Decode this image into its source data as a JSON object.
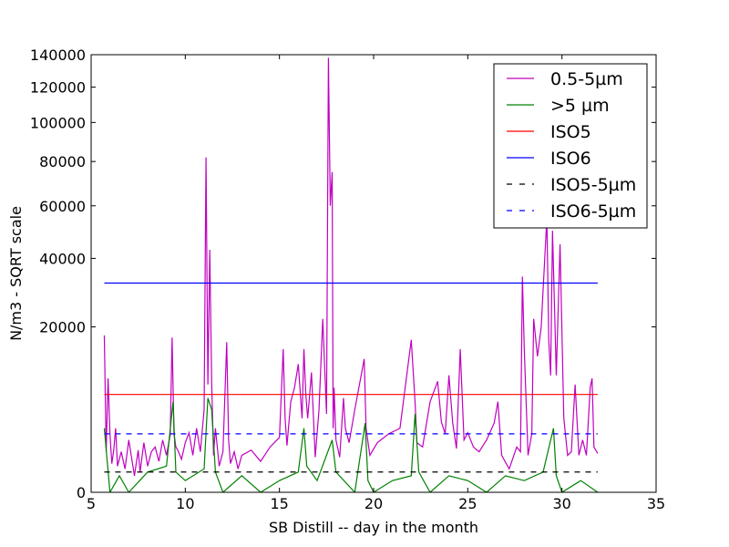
{
  "chart_data": {
    "type": "line",
    "title": "",
    "xlabel": "SB Distill -- day in the month",
    "ylabel": "N/m3 - SQRT scale",
    "xlim": [
      5,
      35
    ],
    "ylim": [
      0,
      140000
    ],
    "y_scale": "sqrt",
    "x_ticks": [
      5,
      10,
      15,
      20,
      25,
      30,
      35
    ],
    "y_ticks": [
      0,
      20000,
      40000,
      60000,
      80000,
      100000,
      120000,
      140000
    ],
    "x_tick_labels": [
      "5",
      "10",
      "15",
      "20",
      "25",
      "30",
      "35"
    ],
    "y_tick_labels": [
      "0",
      "20000",
      "40000",
      "60000",
      "80000",
      "100000",
      "120000",
      "140000"
    ],
    "grid": false,
    "legend_position": "top-right",
    "series": [
      {
        "name": "0.5-5µm",
        "color": "#bf00bf",
        "style": "solid",
        "x": [
          5.7,
          5.8,
          5.9,
          6.0,
          6.1,
          6.2,
          6.3,
          6.4,
          6.6,
          6.8,
          7.0,
          7.3,
          7.5,
          7.6,
          7.8,
          8.0,
          8.2,
          8.4,
          8.6,
          8.8,
          9.0,
          9.2,
          9.3,
          9.4,
          9.5,
          9.6,
          9.8,
          10.0,
          10.2,
          10.4,
          10.6,
          10.8,
          11.0,
          11.1,
          11.2,
          11.3,
          11.4,
          11.5,
          11.6,
          11.8,
          12.0,
          12.2,
          12.3,
          12.4,
          12.6,
          12.8,
          13.0,
          13.5,
          14.0,
          14.5,
          15.0,
          15.2,
          15.3,
          15.4,
          15.6,
          15.8,
          16.0,
          16.2,
          16.3,
          16.4,
          16.5,
          16.7,
          16.9,
          17.1,
          17.3,
          17.5,
          17.6,
          17.7,
          17.8,
          17.85,
          17.9,
          18.0,
          18.2,
          18.4,
          18.5,
          18.7,
          19.0,
          19.5,
          19.6,
          19.8,
          20.2,
          20.8,
          21.4,
          22.0,
          22.2,
          22.3,
          22.6,
          23.0,
          23.4,
          23.6,
          23.8,
          24.0,
          24.2,
          24.4,
          24.6,
          24.8,
          25.0,
          25.3,
          25.6,
          26.0,
          26.4,
          26.6,
          26.8,
          27.2,
          27.6,
          27.8,
          27.9,
          28.0,
          28.2,
          28.4,
          28.5,
          28.7,
          28.9,
          29.0,
          29.2,
          29.3,
          29.4,
          29.5,
          29.7,
          29.9,
          30.1,
          30.3,
          30.5,
          30.7,
          30.9,
          31.1,
          31.3,
          31.5,
          31.6,
          31.7,
          31.9
        ],
        "y": [
          18000,
          1200,
          9500,
          2500,
          600,
          1300,
          3000,
          500,
          1200,
          400,
          2000,
          200,
          1300,
          300,
          1800,
          500,
          1200,
          1500,
          700,
          2000,
          1000,
          2400,
          17500,
          2500,
          1500,
          1300,
          800,
          1800,
          2600,
          1000,
          3000,
          1200,
          5000,
          82000,
          8500,
          43000,
          9000,
          1000,
          3000,
          500,
          1200,
          16500,
          2000,
          600,
          1200,
          400,
          1000,
          1300,
          700,
          1500,
          2200,
          15000,
          4000,
          1600,
          6000,
          8000,
          12000,
          4000,
          15000,
          7000,
          4000,
          10500,
          900,
          5000,
          22000,
          4500,
          138000,
          60000,
          75000,
          3000,
          8000,
          2000,
          900,
          6500,
          3000,
          1800,
          5000,
          13000,
          3000,
          1000,
          1800,
          2500,
          3000,
          17000,
          6000,
          1800,
          1500,
          6000,
          9000,
          3600,
          2500,
          10000,
          3500,
          1400,
          15000,
          2000,
          2600,
          1500,
          1200,
          2000,
          3500,
          6000,
          1000,
          400,
          1500,
          1200,
          34000,
          15000,
          1000,
          2500,
          22000,
          13500,
          20000,
          30000,
          55000,
          17000,
          10000,
          50000,
          10000,
          45000,
          4000,
          1000,
          1200,
          8500,
          1000,
          2000,
          1000,
          8000,
          9500,
          1500,
          1100
        ]
      },
      {
        "name": ">5 µm",
        "color": "#008000",
        "style": "solid",
        "x": [
          5.7,
          6.0,
          6.5,
          7.0,
          8.0,
          9.0,
          9.35,
          9.5,
          10.0,
          11.0,
          11.2,
          11.4,
          11.6,
          12.0,
          13.0,
          14.0,
          15.0,
          16.0,
          16.3,
          16.45,
          17.0,
          17.8,
          18.0,
          19.0,
          19.55,
          19.7,
          20.0,
          21.0,
          22.0,
          22.2,
          22.4,
          23.0,
          24.0,
          25.0,
          26.0,
          27.0,
          28.0,
          29.0,
          29.55,
          29.7,
          30.0,
          31.0,
          31.9
        ],
        "y": [
          3000,
          0,
          200,
          0,
          300,
          500,
          6000,
          300,
          100,
          400,
          6500,
          5000,
          300,
          0,
          200,
          0,
          100,
          300,
          3000,
          500,
          100,
          2000,
          300,
          0,
          3500,
          100,
          0,
          100,
          200,
          4500,
          300,
          0,
          200,
          100,
          0,
          200,
          100,
          300,
          3000,
          200,
          0,
          100,
          0
        ]
      },
      {
        "name": "ISO5",
        "color": "#ff0000",
        "style": "solid",
        "x": [
          5.7,
          31.9
        ],
        "y": [
          7000,
          7000
        ]
      },
      {
        "name": "ISO6",
        "color": "#0000ff",
        "style": "solid",
        "x": [
          5.7,
          31.9
        ],
        "y": [
          32000,
          32000
        ]
      },
      {
        "name": "ISO5-5µm",
        "color": "#000000",
        "style": "dashed",
        "x": [
          5.7,
          31.9
        ],
        "y": [
          300,
          300
        ]
      },
      {
        "name": "ISO6-5µm",
        "color": "#0000ff",
        "style": "dashed",
        "x": [
          5.7,
          31.9
        ],
        "y": [
          2500,
          2500
        ]
      }
    ]
  }
}
